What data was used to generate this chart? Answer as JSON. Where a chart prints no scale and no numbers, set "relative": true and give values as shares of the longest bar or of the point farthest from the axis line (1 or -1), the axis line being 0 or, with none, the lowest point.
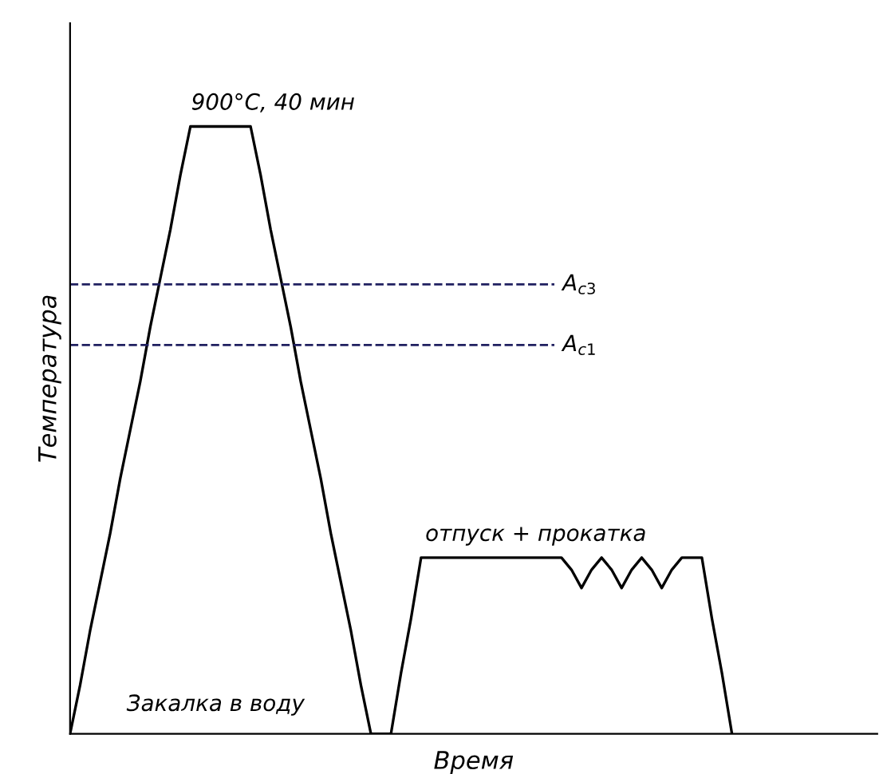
{
  "chart_data": {
    "type": "line",
    "relative": true,
    "xlabel": "Время",
    "ylabel": "Температура",
    "categories": [
      null,
      null,
      null,
      null,
      null,
      null,
      null,
      null,
      null,
      null,
      null,
      null,
      null,
      null,
      null,
      null,
      null,
      null,
      null,
      null,
      null,
      null,
      null,
      null,
      null,
      null,
      null,
      null,
      null,
      null,
      null,
      null,
      null,
      null,
      null,
      null,
      null,
      null,
      null,
      null,
      null,
      null,
      null,
      null,
      null,
      null,
      null,
      null,
      null,
      null,
      null,
      null,
      null,
      null,
      null,
      null,
      null,
      null,
      null,
      null,
      null,
      null,
      null,
      null,
      null,
      null,
      null
    ],
    "series": [
      {
        "color": "#000000",
        "values": [
          0,
          0.08,
          0.17,
          0.25,
          0.33,
          0.42,
          0.5,
          0.58,
          0.67,
          0.75,
          0.83,
          0.92,
          1,
          1,
          1,
          1,
          1,
          1,
          1,
          0.92,
          0.83,
          0.75,
          0.67,
          0.58,
          0.5,
          0.42,
          0.33,
          0.25,
          0.17,
          0.08,
          0,
          0,
          0,
          0.1,
          0.19,
          0.29,
          0.29,
          0.29,
          0.29,
          0.29,
          0.29,
          0.29,
          0.29,
          0.29,
          0.29,
          0.29,
          0.29,
          0.29,
          0.29,
          0.29,
          0.27,
          0.24,
          0.27,
          0.29,
          0.27,
          0.24,
          0.27,
          0.29,
          0.27,
          0.24,
          0.27,
          0.29,
          0.29,
          0.29,
          0.19,
          0.1,
          0
        ]
      }
    ],
    "ref_lines": [
      {
        "axis": "y",
        "value": 0.74,
        "label": "A$_{c3}$",
        "color": "#202060",
        "line_style": "dashed"
      },
      {
        "axis": "y",
        "value": 0.64,
        "label": "A$_{c1}$",
        "color": "#202060",
        "line_style": "dashed"
      }
    ],
    "annotations": [
      "900°C, 40 мин",
      "отпуск + прокатка",
      "Закалка в воду"
    ],
    "marker": "none",
    "line_style": "solid"
  }
}
